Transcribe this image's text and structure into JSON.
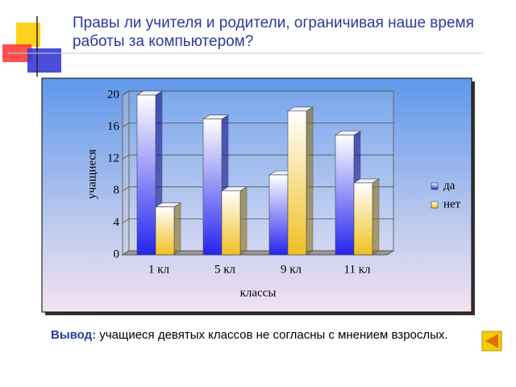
{
  "slide": {
    "title": "Правы ли учителя и родители, ограничивая наше время работы за компьютером?",
    "conclusion_label": "Вывод:",
    "conclusion": "учащиеся девятых классов не согласны с мнением взрослых."
  },
  "chart_data": {
    "type": "bar3d",
    "y_label": "учащиеся",
    "x_label": "классы",
    "categories": [
      "1 кл",
      "5 кл",
      "9 кл",
      "11 кл"
    ],
    "series": [
      {
        "name": "да",
        "color": "#2424f0",
        "values": [
          20,
          17,
          10,
          15
        ]
      },
      {
        "name": "нет",
        "color": "#f0c020",
        "values": [
          6,
          8,
          18,
          9
        ]
      }
    ],
    "ylim": [
      0,
      20
    ],
    "yticks": [
      0,
      4,
      8,
      12,
      16,
      20
    ],
    "grid": true,
    "legend": "right"
  }
}
